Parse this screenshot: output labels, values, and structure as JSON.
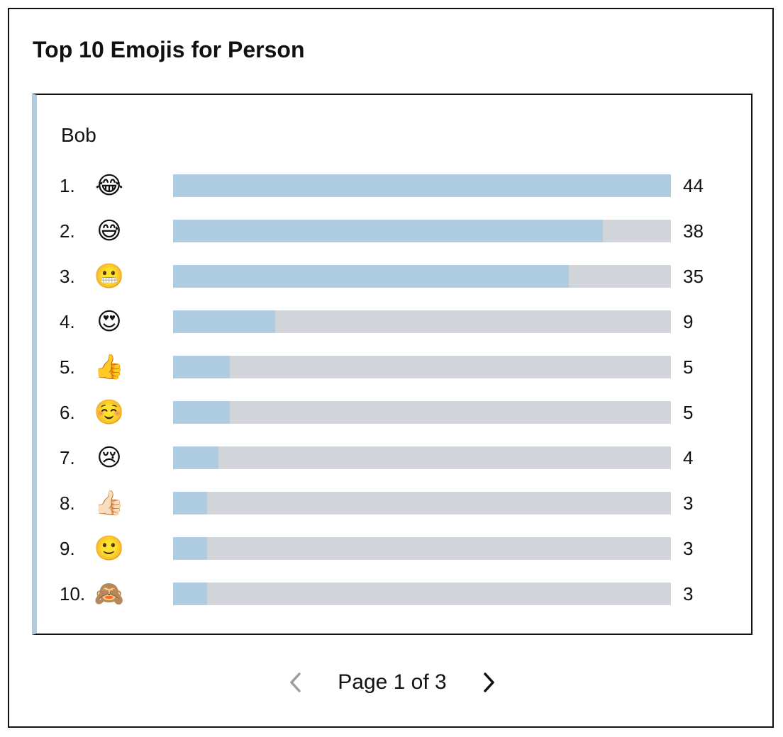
{
  "title": "Top 10 Emojis for Person",
  "person": "Bob",
  "colors": {
    "bar_fill": "#aecde2",
    "bar_track": "#d2d5d9",
    "panel_accent": "#aecde2",
    "prev_disabled": "#9a9da3",
    "next_active": "#111111"
  },
  "chart_data": {
    "type": "bar",
    "orientation": "horizontal",
    "categories": [
      "😂",
      "😅",
      "😬",
      "😍",
      "👍",
      "☺️",
      "😢",
      "👍🏻",
      "🙂",
      "🙈"
    ],
    "ranks": [
      "1.",
      "2.",
      "3.",
      "4.",
      "5.",
      "6.",
      "7.",
      "8.",
      "9.",
      "10."
    ],
    "values": [
      44,
      38,
      35,
      9,
      5,
      5,
      4,
      3,
      3,
      3
    ],
    "xlim": [
      0,
      44
    ]
  },
  "pagination": {
    "label": "Page 1 of 3",
    "prev_icon": "chevron-left-icon",
    "next_icon": "chevron-right-icon"
  }
}
